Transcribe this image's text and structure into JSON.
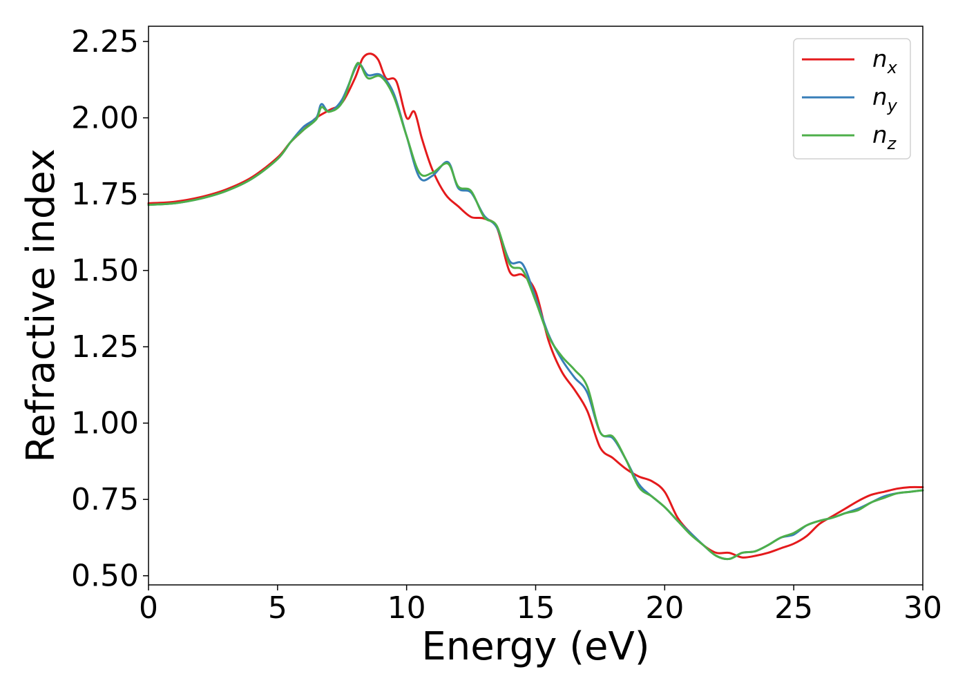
{
  "chart_data": {
    "type": "line",
    "title": "",
    "xlabel": "Energy (eV)",
    "ylabel": "Refractive index",
    "xlim": [
      0,
      30
    ],
    "ylim": [
      0.47,
      2.3
    ],
    "xticks": [
      "0",
      "5",
      "10",
      "15",
      "20",
      "25",
      "30"
    ],
    "yticks": [
      "0.50",
      "0.75",
      "1.00",
      "1.25",
      "1.50",
      "1.75",
      "2.00",
      "2.25"
    ],
    "grid": false,
    "legend_position": "top-right",
    "series": [
      {
        "name": "n",
        "subscript": "x",
        "color": "#e41a1c",
        "points": [
          [
            0,
            1.72
          ],
          [
            1,
            1.725
          ],
          [
            2,
            1.74
          ],
          [
            3,
            1.765
          ],
          [
            4,
            1.805
          ],
          [
            5,
            1.87
          ],
          [
            5.5,
            1.92
          ],
          [
            6,
            1.96
          ],
          [
            6.5,
            2.0
          ],
          [
            7,
            2.025
          ],
          [
            7.5,
            2.05
          ],
          [
            8,
            2.13
          ],
          [
            8.3,
            2.195
          ],
          [
            8.6,
            2.21
          ],
          [
            8.9,
            2.19
          ],
          [
            9.2,
            2.13
          ],
          [
            9.6,
            2.12
          ],
          [
            10,
            2.0
          ],
          [
            10.3,
            2.02
          ],
          [
            10.6,
            1.93
          ],
          [
            11,
            1.83
          ],
          [
            11.5,
            1.75
          ],
          [
            12,
            1.71
          ],
          [
            12.5,
            1.675
          ],
          [
            13,
            1.67
          ],
          [
            13.5,
            1.64
          ],
          [
            14,
            1.495
          ],
          [
            14.5,
            1.485
          ],
          [
            15,
            1.43
          ],
          [
            15.5,
            1.27
          ],
          [
            16,
            1.17
          ],
          [
            16.5,
            1.11
          ],
          [
            17,
            1.04
          ],
          [
            17.5,
            0.92
          ],
          [
            18,
            0.885
          ],
          [
            18.5,
            0.85
          ],
          [
            19,
            0.825
          ],
          [
            19.5,
            0.81
          ],
          [
            20,
            0.775
          ],
          [
            20.5,
            0.69
          ],
          [
            21,
            0.64
          ],
          [
            21.5,
            0.6
          ],
          [
            22,
            0.575
          ],
          [
            22.5,
            0.575
          ],
          [
            23,
            0.56
          ],
          [
            23.5,
            0.565
          ],
          [
            24,
            0.575
          ],
          [
            24.5,
            0.59
          ],
          [
            25,
            0.605
          ],
          [
            25.5,
            0.63
          ],
          [
            26,
            0.67
          ],
          [
            26.5,
            0.695
          ],
          [
            27,
            0.72
          ],
          [
            27.5,
            0.745
          ],
          [
            28,
            0.765
          ],
          [
            28.5,
            0.775
          ],
          [
            29,
            0.785
          ],
          [
            29.5,
            0.79
          ],
          [
            30,
            0.79
          ]
        ]
      },
      {
        "name": "n",
        "subscript": "y",
        "color": "#377eb8",
        "points": [
          [
            0,
            1.715
          ],
          [
            1,
            1.72
          ],
          [
            2,
            1.735
          ],
          [
            3,
            1.76
          ],
          [
            4,
            1.8
          ],
          [
            5,
            1.865
          ],
          [
            5.5,
            1.92
          ],
          [
            6,
            1.97
          ],
          [
            6.5,
            2.0
          ],
          [
            6.7,
            2.045
          ],
          [
            7,
            2.02
          ],
          [
            7.5,
            2.06
          ],
          [
            8,
            2.16
          ],
          [
            8.2,
            2.175
          ],
          [
            8.5,
            2.14
          ],
          [
            9,
            2.14
          ],
          [
            9.5,
            2.08
          ],
          [
            10,
            1.94
          ],
          [
            10.5,
            1.805
          ],
          [
            11,
            1.81
          ],
          [
            11.6,
            1.855
          ],
          [
            12,
            1.77
          ],
          [
            12.5,
            1.755
          ],
          [
            13,
            1.68
          ],
          [
            13.5,
            1.64
          ],
          [
            14,
            1.53
          ],
          [
            14.5,
            1.52
          ],
          [
            15,
            1.41
          ],
          [
            15.5,
            1.29
          ],
          [
            16,
            1.21
          ],
          [
            16.5,
            1.15
          ],
          [
            17,
            1.1
          ],
          [
            17.5,
            0.97
          ],
          [
            18,
            0.95
          ],
          [
            18.5,
            0.88
          ],
          [
            19,
            0.8
          ],
          [
            19.5,
            0.76
          ],
          [
            20,
            0.725
          ],
          [
            20.5,
            0.68
          ],
          [
            21,
            0.64
          ],
          [
            21.5,
            0.6
          ],
          [
            22,
            0.565
          ],
          [
            22.5,
            0.555
          ],
          [
            23,
            0.575
          ],
          [
            23.5,
            0.58
          ],
          [
            24,
            0.6
          ],
          [
            24.5,
            0.625
          ],
          [
            25,
            0.635
          ],
          [
            25.5,
            0.665
          ],
          [
            26,
            0.68
          ],
          [
            26.5,
            0.69
          ],
          [
            27,
            0.705
          ],
          [
            27.5,
            0.72
          ],
          [
            28,
            0.74
          ],
          [
            28.5,
            0.76
          ],
          [
            29,
            0.77
          ],
          [
            29.5,
            0.775
          ],
          [
            30,
            0.78
          ]
        ]
      },
      {
        "name": "n",
        "subscript": "z",
        "color": "#4daf4a",
        "points": [
          [
            0,
            1.715
          ],
          [
            1,
            1.72
          ],
          [
            2,
            1.735
          ],
          [
            3,
            1.76
          ],
          [
            4,
            1.8
          ],
          [
            5,
            1.865
          ],
          [
            5.5,
            1.92
          ],
          [
            6,
            1.96
          ],
          [
            6.5,
            1.995
          ],
          [
            6.7,
            2.035
          ],
          [
            7,
            2.02
          ],
          [
            7.5,
            2.05
          ],
          [
            8,
            2.165
          ],
          [
            8.2,
            2.175
          ],
          [
            8.5,
            2.13
          ],
          [
            9,
            2.135
          ],
          [
            9.5,
            2.07
          ],
          [
            10,
            1.94
          ],
          [
            10.5,
            1.82
          ],
          [
            11,
            1.82
          ],
          [
            11.6,
            1.85
          ],
          [
            12,
            1.775
          ],
          [
            12.5,
            1.76
          ],
          [
            13,
            1.675
          ],
          [
            13.5,
            1.645
          ],
          [
            14,
            1.52
          ],
          [
            14.5,
            1.5
          ],
          [
            15,
            1.4
          ],
          [
            15.5,
            1.285
          ],
          [
            16,
            1.22
          ],
          [
            16.5,
            1.175
          ],
          [
            17,
            1.12
          ],
          [
            17.5,
            0.97
          ],
          [
            18,
            0.955
          ],
          [
            18.5,
            0.88
          ],
          [
            19,
            0.79
          ],
          [
            19.5,
            0.76
          ],
          [
            20,
            0.725
          ],
          [
            20.5,
            0.68
          ],
          [
            21,
            0.635
          ],
          [
            21.5,
            0.6
          ],
          [
            22,
            0.565
          ],
          [
            22.5,
            0.555
          ],
          [
            23,
            0.575
          ],
          [
            23.5,
            0.58
          ],
          [
            24,
            0.6
          ],
          [
            24.5,
            0.625
          ],
          [
            25,
            0.64
          ],
          [
            25.5,
            0.665
          ],
          [
            26,
            0.68
          ],
          [
            26.5,
            0.69
          ],
          [
            27,
            0.705
          ],
          [
            27.5,
            0.715
          ],
          [
            28,
            0.74
          ],
          [
            28.5,
            0.755
          ],
          [
            29,
            0.77
          ],
          [
            29.5,
            0.775
          ],
          [
            30,
            0.78
          ]
        ]
      }
    ]
  }
}
